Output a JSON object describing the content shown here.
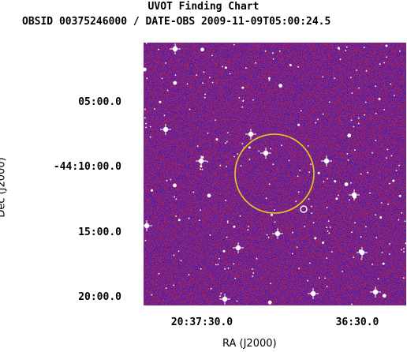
{
  "title": "UVOT Finding Chart",
  "subtitle": "OBSID 00375246000 / DATE-OBS 2009-11-09T05:00:24.5",
  "axes": {
    "xlabel": "RA (J2000)",
    "ylabel": "Dec (J2000)",
    "x_ticks": [
      "20:37:30.0",
      "36:30.0"
    ],
    "y_ticks": [
      "05:00.0",
      "-44:10:00.0",
      "15:00.0",
      "20:00.0"
    ]
  },
  "colors": {
    "background": "#ffffff",
    "noise_blue": "#2a1fd0",
    "noise_red": "#c8283a",
    "star": "#ffffff",
    "error_circle": "#e0d020",
    "source_marker": "#ffffff"
  },
  "image": {
    "type": "sky image with noise texture and stars",
    "error_circle": "large yellow circle",
    "source_marker": "small white circle"
  }
}
